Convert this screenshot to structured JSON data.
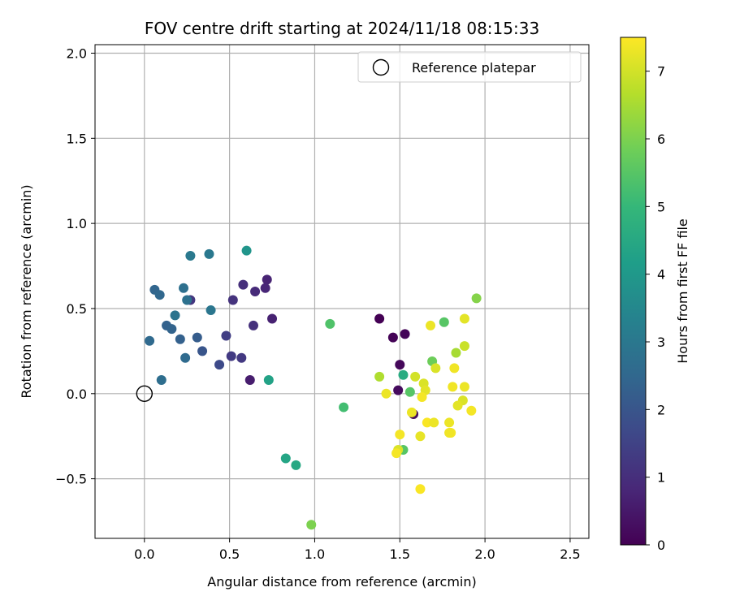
{
  "chart_data": {
    "type": "scatter",
    "title": "FOV centre drift starting at 2024/11/18 08:15:33",
    "xlabel": "Angular distance from reference (arcmin)",
    "ylabel": "Rotation from reference (arcmin)",
    "xlim": [
      -0.29,
      2.61
    ],
    "ylim": [
      -0.85,
      2.05
    ],
    "xticks": [
      0.0,
      0.5,
      1.0,
      1.5,
      2.0,
      2.5
    ],
    "xtick_labels": [
      "0.0",
      "0.5",
      "1.0",
      "1.5",
      "2.0",
      "2.5"
    ],
    "yticks": [
      -0.5,
      0.0,
      0.5,
      1.0,
      1.5,
      2.0
    ],
    "ytick_labels": [
      "−0.5",
      "0.0",
      "0.5",
      "1.0",
      "1.5",
      "2.0"
    ],
    "grid": true,
    "legend": {
      "placement": "top-right",
      "entries": [
        "Reference platepar"
      ]
    },
    "reference_point": {
      "x": 0.0,
      "y": 0.0,
      "marker": "open-circle"
    },
    "colormap": "viridis",
    "colorbar": {
      "label": "Hours from first FF file",
      "min": 0,
      "max": 7.5,
      "ticks": [
        0,
        1,
        2,
        3,
        4,
        5,
        6,
        7
      ],
      "tick_labels": [
        "0",
        "1",
        "2",
        "3",
        "4",
        "5",
        "6",
        "7"
      ]
    },
    "points": [
      {
        "x": 1.38,
        "y": 0.44,
        "h": 0.0
      },
      {
        "x": 1.46,
        "y": 0.33,
        "h": 0.05
      },
      {
        "x": 1.53,
        "y": 0.35,
        "h": 0.1
      },
      {
        "x": 1.5,
        "y": 0.17,
        "h": 0.15
      },
      {
        "x": 1.49,
        "y": 0.02,
        "h": 0.2
      },
      {
        "x": 1.58,
        "y": -0.12,
        "h": 0.3
      },
      {
        "x": 0.62,
        "y": 0.08,
        "h": 0.6
      },
      {
        "x": 0.75,
        "y": 0.44,
        "h": 0.7
      },
      {
        "x": 0.72,
        "y": 0.67,
        "h": 0.75
      },
      {
        "x": 0.71,
        "y": 0.62,
        "h": 0.8
      },
      {
        "x": 0.65,
        "y": 0.6,
        "h": 0.9
      },
      {
        "x": 0.58,
        "y": 0.64,
        "h": 1.0
      },
      {
        "x": 0.64,
        "y": 0.4,
        "h": 1.05
      },
      {
        "x": 0.52,
        "y": 0.55,
        "h": 1.1
      },
      {
        "x": 0.27,
        "y": 0.55,
        "h": 1.2
      },
      {
        "x": 0.57,
        "y": 0.21,
        "h": 1.25
      },
      {
        "x": 0.51,
        "y": 0.22,
        "h": 1.3
      },
      {
        "x": 0.48,
        "y": 0.34,
        "h": 1.4
      },
      {
        "x": 0.44,
        "y": 0.17,
        "h": 1.7
      },
      {
        "x": 0.34,
        "y": 0.25,
        "h": 2.0
      },
      {
        "x": 0.31,
        "y": 0.33,
        "h": 2.2
      },
      {
        "x": 0.21,
        "y": 0.32,
        "h": 2.3
      },
      {
        "x": 0.13,
        "y": 0.4,
        "h": 2.35
      },
      {
        "x": 0.16,
        "y": 0.38,
        "h": 2.4
      },
      {
        "x": 0.06,
        "y": 0.61,
        "h": 2.45
      },
      {
        "x": 0.09,
        "y": 0.58,
        "h": 2.5
      },
      {
        "x": 0.03,
        "y": 0.31,
        "h": 2.55
      },
      {
        "x": 0.24,
        "y": 0.21,
        "h": 2.6
      },
      {
        "x": 0.1,
        "y": 0.08,
        "h": 2.7
      },
      {
        "x": 0.23,
        "y": 0.62,
        "h": 2.75
      },
      {
        "x": 0.25,
        "y": 0.55,
        "h": 2.8
      },
      {
        "x": 0.18,
        "y": 0.46,
        "h": 2.9
      },
      {
        "x": 0.39,
        "y": 0.49,
        "h": 2.95
      },
      {
        "x": 0.38,
        "y": 0.82,
        "h": 3.0
      },
      {
        "x": 0.27,
        "y": 0.81,
        "h": 3.05
      },
      {
        "x": 0.6,
        "y": 0.84,
        "h": 3.9
      },
      {
        "x": 0.73,
        "y": 0.08,
        "h": 4.3
      },
      {
        "x": 0.83,
        "y": -0.38,
        "h": 4.4
      },
      {
        "x": 0.89,
        "y": -0.42,
        "h": 4.5
      },
      {
        "x": 1.52,
        "y": 0.11,
        "h": 4.6
      },
      {
        "x": 1.17,
        "y": -0.08,
        "h": 5.2
      },
      {
        "x": 1.09,
        "y": 0.41,
        "h": 5.4
      },
      {
        "x": 1.52,
        "y": -0.33,
        "h": 5.5
      },
      {
        "x": 1.56,
        "y": 0.01,
        "h": 5.5
      },
      {
        "x": 1.76,
        "y": 0.42,
        "h": 5.5
      },
      {
        "x": 1.69,
        "y": 0.19,
        "h": 5.8
      },
      {
        "x": 0.98,
        "y": -0.77,
        "h": 6.0
      },
      {
        "x": 1.95,
        "y": 0.56,
        "h": 6.1
      },
      {
        "x": 1.38,
        "y": 0.1,
        "h": 6.6
      },
      {
        "x": 1.83,
        "y": 0.24,
        "h": 6.5
      },
      {
        "x": 1.59,
        "y": 0.1,
        "h": 7.0
      },
      {
        "x": 1.64,
        "y": 0.06,
        "h": 7.1
      },
      {
        "x": 1.71,
        "y": 0.15,
        "h": 7.1
      },
      {
        "x": 1.88,
        "y": 0.28,
        "h": 6.9
      },
      {
        "x": 1.88,
        "y": 0.44,
        "h": 7.2
      },
      {
        "x": 1.68,
        "y": 0.4,
        "h": 7.3
      },
      {
        "x": 1.42,
        "y": 0.0,
        "h": 7.3
      },
      {
        "x": 1.65,
        "y": 0.02,
        "h": 7.2
      },
      {
        "x": 1.63,
        "y": -0.02,
        "h": 7.4
      },
      {
        "x": 1.82,
        "y": 0.15,
        "h": 7.35
      },
      {
        "x": 1.81,
        "y": 0.04,
        "h": 7.35
      },
      {
        "x": 1.88,
        "y": 0.04,
        "h": 7.3
      },
      {
        "x": 1.87,
        "y": -0.04,
        "h": 7.1
      },
      {
        "x": 1.84,
        "y": -0.07,
        "h": 7.2
      },
      {
        "x": 1.92,
        "y": -0.1,
        "h": 7.4
      },
      {
        "x": 1.57,
        "y": -0.11,
        "h": 7.3
      },
      {
        "x": 1.66,
        "y": -0.17,
        "h": 7.45
      },
      {
        "x": 1.7,
        "y": -0.17,
        "h": 7.3
      },
      {
        "x": 1.79,
        "y": -0.17,
        "h": 7.3
      },
      {
        "x": 1.8,
        "y": -0.23,
        "h": 7.4
      },
      {
        "x": 1.79,
        "y": -0.23,
        "h": 7.35
      },
      {
        "x": 1.62,
        "y": -0.25,
        "h": 7.25
      },
      {
        "x": 1.5,
        "y": -0.24,
        "h": 7.4
      },
      {
        "x": 1.49,
        "y": -0.33,
        "h": 7.1
      },
      {
        "x": 1.48,
        "y": -0.35,
        "h": 7.4
      },
      {
        "x": 1.62,
        "y": -0.56,
        "h": 7.45
      }
    ]
  }
}
